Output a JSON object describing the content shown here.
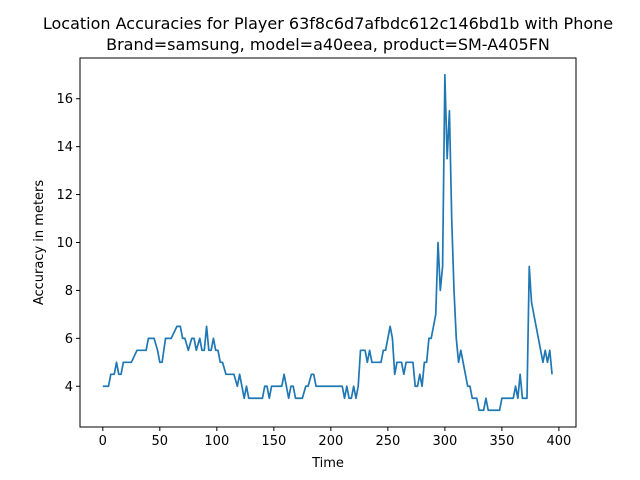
{
  "chart_data": {
    "type": "line",
    "title_line1": "Location Accuracies for Player 63f8c6d7afbdc612c146bd1b with Phone",
    "title_line2": "Brand=samsung, model=a40eea, product=SM-A405FN",
    "xlabel": "Time",
    "ylabel": "Accuracy in meters",
    "xlim": [
      -20,
      415
    ],
    "ylim": [
      2.3,
      17.7
    ],
    "xticks": [
      0,
      50,
      100,
      150,
      200,
      250,
      300,
      350,
      400
    ],
    "yticks": [
      4,
      6,
      8,
      10,
      12,
      14,
      16
    ],
    "grid": false,
    "color": "#1f77b4",
    "series": [
      {
        "x": [
          0,
          5,
          7,
          10,
          12,
          14,
          16,
          18,
          20,
          22,
          25,
          30,
          35,
          38,
          40,
          45,
          48,
          50,
          52,
          55,
          58,
          60,
          65,
          68,
          70,
          72,
          75,
          78,
          80,
          82,
          85,
          87,
          89,
          91,
          93,
          95,
          97,
          99,
          101,
          103,
          105,
          108,
          110,
          115,
          118,
          120,
          122,
          124,
          126,
          128,
          130,
          135,
          140,
          142,
          144,
          146,
          148,
          150,
          155,
          157,
          159,
          161,
          163,
          165,
          167,
          169,
          171,
          173,
          175,
          178,
          180,
          183,
          185,
          187,
          190,
          195,
          200,
          205,
          208,
          210,
          212,
          214,
          216,
          218,
          220,
          222,
          224,
          226,
          228,
          230,
          232,
          234,
          236,
          238,
          240,
          242,
          244,
          246,
          248,
          250,
          252,
          254,
          256,
          258,
          260,
          262,
          264,
          266,
          268,
          270,
          272,
          274,
          276,
          278,
          280,
          282,
          284,
          286,
          288,
          290,
          292,
          294,
          296,
          298,
          300,
          302,
          304,
          306,
          308,
          310,
          312,
          314,
          316,
          318,
          320,
          322,
          324,
          326,
          328,
          330,
          332,
          334,
          336,
          338,
          340,
          342,
          344,
          346,
          348,
          350,
          352,
          354,
          356,
          358,
          360,
          362,
          364,
          366,
          368,
          370,
          372,
          374,
          376,
          378,
          380,
          382,
          384,
          386,
          388,
          390,
          392,
          394
        ],
        "y": [
          4,
          4,
          4.5,
          4.5,
          5,
          4.5,
          4.5,
          5,
          5,
          5,
          5,
          5.5,
          5.5,
          5.5,
          6,
          6,
          5.5,
          5,
          5,
          6,
          6,
          6,
          6.5,
          6.5,
          6,
          6,
          5.5,
          6,
          6,
          5.5,
          6,
          5.5,
          5.5,
          6.5,
          5.5,
          5.5,
          6,
          5.5,
          5.5,
          5,
          5,
          4.5,
          4.5,
          4.5,
          4,
          4.5,
          4,
          3.5,
          4,
          3.5,
          3.5,
          3.5,
          3.5,
          4,
          4,
          3.5,
          4,
          4,
          4,
          4,
          4.5,
          4,
          3.5,
          4,
          4,
          3.5,
          3.5,
          3.5,
          3.5,
          4,
          4,
          4.5,
          4.5,
          4,
          4,
          4,
          4,
          4,
          4,
          4,
          3.5,
          4,
          3.5,
          3.5,
          4,
          3.5,
          4,
          5.5,
          5.5,
          5.5,
          5,
          5.5,
          5,
          5,
          5,
          5,
          5,
          5.5,
          5.5,
          6,
          6.5,
          6,
          4.5,
          5,
          5,
          5,
          4.5,
          5,
          5,
          5,
          5,
          4,
          4,
          4.5,
          4,
          5,
          5,
          6,
          6,
          6.5,
          7,
          10,
          8,
          9,
          17,
          13.5,
          15.5,
          11,
          8,
          6,
          5,
          5.5,
          5,
          4.5,
          4,
          4,
          3.5,
          3.5,
          3.5,
          3,
          3,
          3,
          3.5,
          3,
          3,
          3,
          3,
          3,
          3,
          3.5,
          3.5,
          3.5,
          3.5,
          3.5,
          3.5,
          4,
          3.5,
          4.5,
          3.5,
          3.5,
          3.5,
          9,
          7.5,
          7,
          6.5,
          6,
          5.5,
          5,
          5.5,
          5,
          5.5,
          4.5
        ]
      }
    ]
  }
}
